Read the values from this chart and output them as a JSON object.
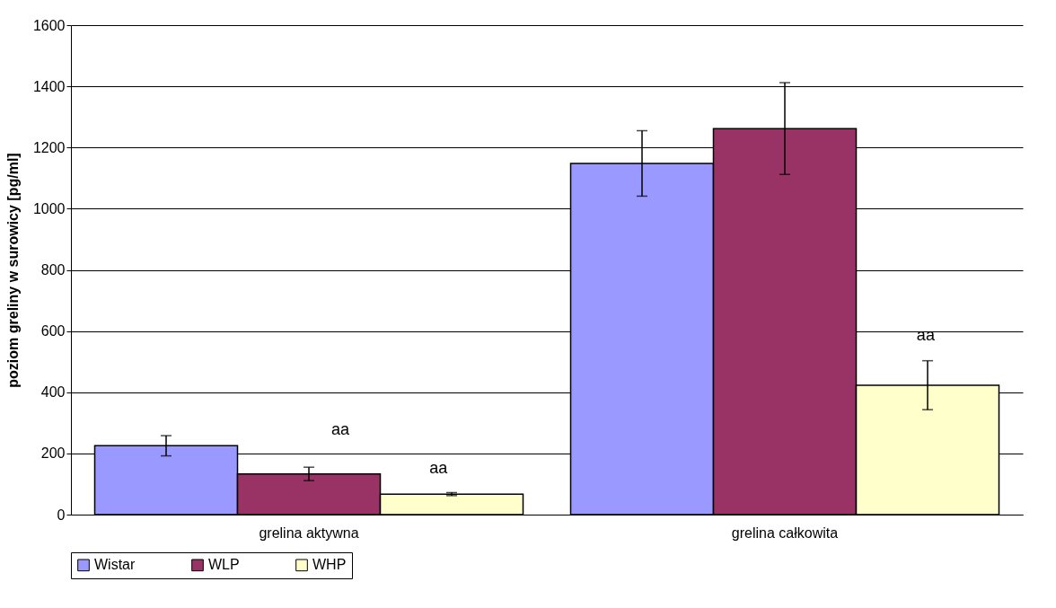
{
  "chart_data": {
    "type": "bar",
    "ylabel": "poziom greliny w surowicy [pg/ml]",
    "categories": [
      "grelina aktywna",
      "grelina całkowita"
    ],
    "series": [
      {
        "name": "Wistar",
        "color": "#9999ff",
        "values": [
          225,
          1148
        ],
        "errors": [
          33,
          107
        ]
      },
      {
        "name": "WLP",
        "color": "#993366",
        "values": [
          133,
          1262
        ],
        "errors": [
          22,
          150
        ]
      },
      {
        "name": "WHP",
        "color": "#ffffcc",
        "values": [
          67,
          423
        ],
        "errors": [
          5,
          80
        ]
      }
    ],
    "ylim": [
      0,
      1600
    ],
    "yticks": [
      0,
      200,
      400,
      600,
      800,
      1000,
      1200,
      1400,
      1600
    ],
    "grid": "y",
    "legend": "bottom",
    "annotations": [
      "aa",
      "aa",
      "aa"
    ]
  }
}
